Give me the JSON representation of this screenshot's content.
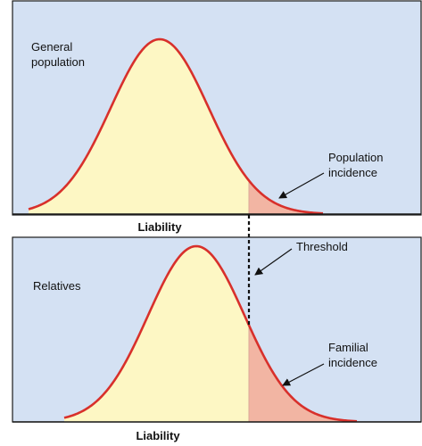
{
  "colors": {
    "panel_bg": "#d4e1f3",
    "panel_border": "#1a1a1a",
    "curve_stroke": "#d8302b",
    "curve_fill": "#fdf7c4",
    "incidence_fill": "#f2b5a3"
  },
  "top_panel": {
    "label_line1": "General",
    "label_line2": "population",
    "annotation_line1": "Population",
    "annotation_line2": "incidence",
    "axis_label": "Liability"
  },
  "bottom_panel": {
    "label": "Relatives",
    "annotation_line1": "Familial",
    "annotation_line2": "incidence",
    "axis_label": "Liability"
  },
  "threshold_label": "Threshold"
}
